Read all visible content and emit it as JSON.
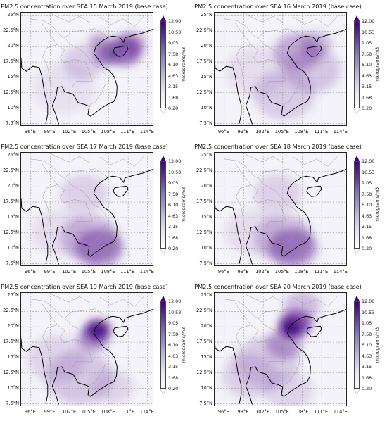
{
  "panels": [
    {
      "title": "PM2.5 concentration over SEA 15 March 2019 (base case)",
      "hot": "north-east"
    },
    {
      "title": "PM2.5 concentration over SEA 16 March 2019 (base case)",
      "hot": "north-wide"
    },
    {
      "title": "PM2.5 concentration over SEA 17 March 2019 (base case)",
      "hot": "south"
    },
    {
      "title": "PM2.5 concentration over SEA 18 March 2019 (base case)",
      "hot": "south"
    },
    {
      "title": "PM2.5 concentration over SEA 19 March 2019 (base case)",
      "hot": "north"
    },
    {
      "title": "PM2.5 concentration over SEA 20 March 2019 (base case)",
      "hot": "north-strong"
    }
  ],
  "lat_ticks": [
    "25°N",
    "22.5°N",
    "20°N",
    "17.5°N",
    "15°N",
    "12.5°N",
    "10°N",
    "7.5°N"
  ],
  "lon_ticks": [
    "96°E",
    "99°E",
    "102°E",
    "105°E",
    "108°E",
    "111°E",
    "114°E"
  ],
  "colorbar": {
    "ticks": [
      "12.00",
      "10.53",
      "9.05",
      "7.58",
      "6.10",
      "4.63",
      "3.15",
      "1.68",
      "0.20"
    ],
    "unit": "micrograms/m3",
    "colors": [
      "#3f007d",
      "#54278f",
      "#6a51a3",
      "#807dba",
      "#9e9ac8",
      "#bcbddc",
      "#dadaeb",
      "#efedf5",
      "#fcfbfd"
    ]
  }
}
